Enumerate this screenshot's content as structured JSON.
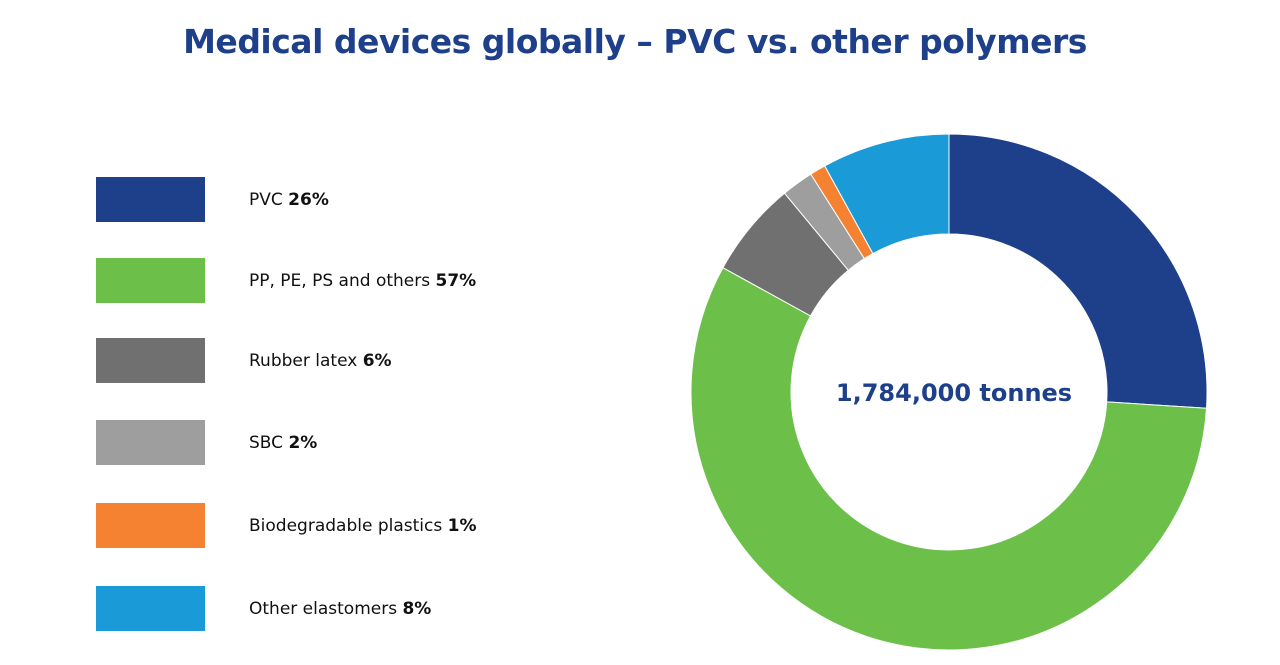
{
  "title": "Medical devices globally – PVC vs. other polymers",
  "chart_data": {
    "type": "pie",
    "style": "donut",
    "title": "Medical devices globally – PVC vs. other polymers",
    "center_label": "1,784,000 tonnes",
    "legend_position": "left",
    "slices": [
      {
        "label": "PVC",
        "value_text": "26%",
        "value": 26,
        "color": "#1e408a"
      },
      {
        "label": "PP, PE, PS and others",
        "value_text": "57%",
        "value": 57,
        "color": "#6cc04a"
      },
      {
        "label": "Rubber latex",
        "value_text": "6%",
        "value": 6,
        "color": "#707070"
      },
      {
        "label": "SBC",
        "value_text": "2%",
        "value": 2,
        "color": "#9e9e9e"
      },
      {
        "label": "Biodegradable plastics",
        "value_text": "1%",
        "value": 1,
        "color": "#f58231"
      },
      {
        "label": "Other elastomers",
        "value_text": "8%",
        "value": 8,
        "color": "#1a9ad6"
      }
    ]
  }
}
